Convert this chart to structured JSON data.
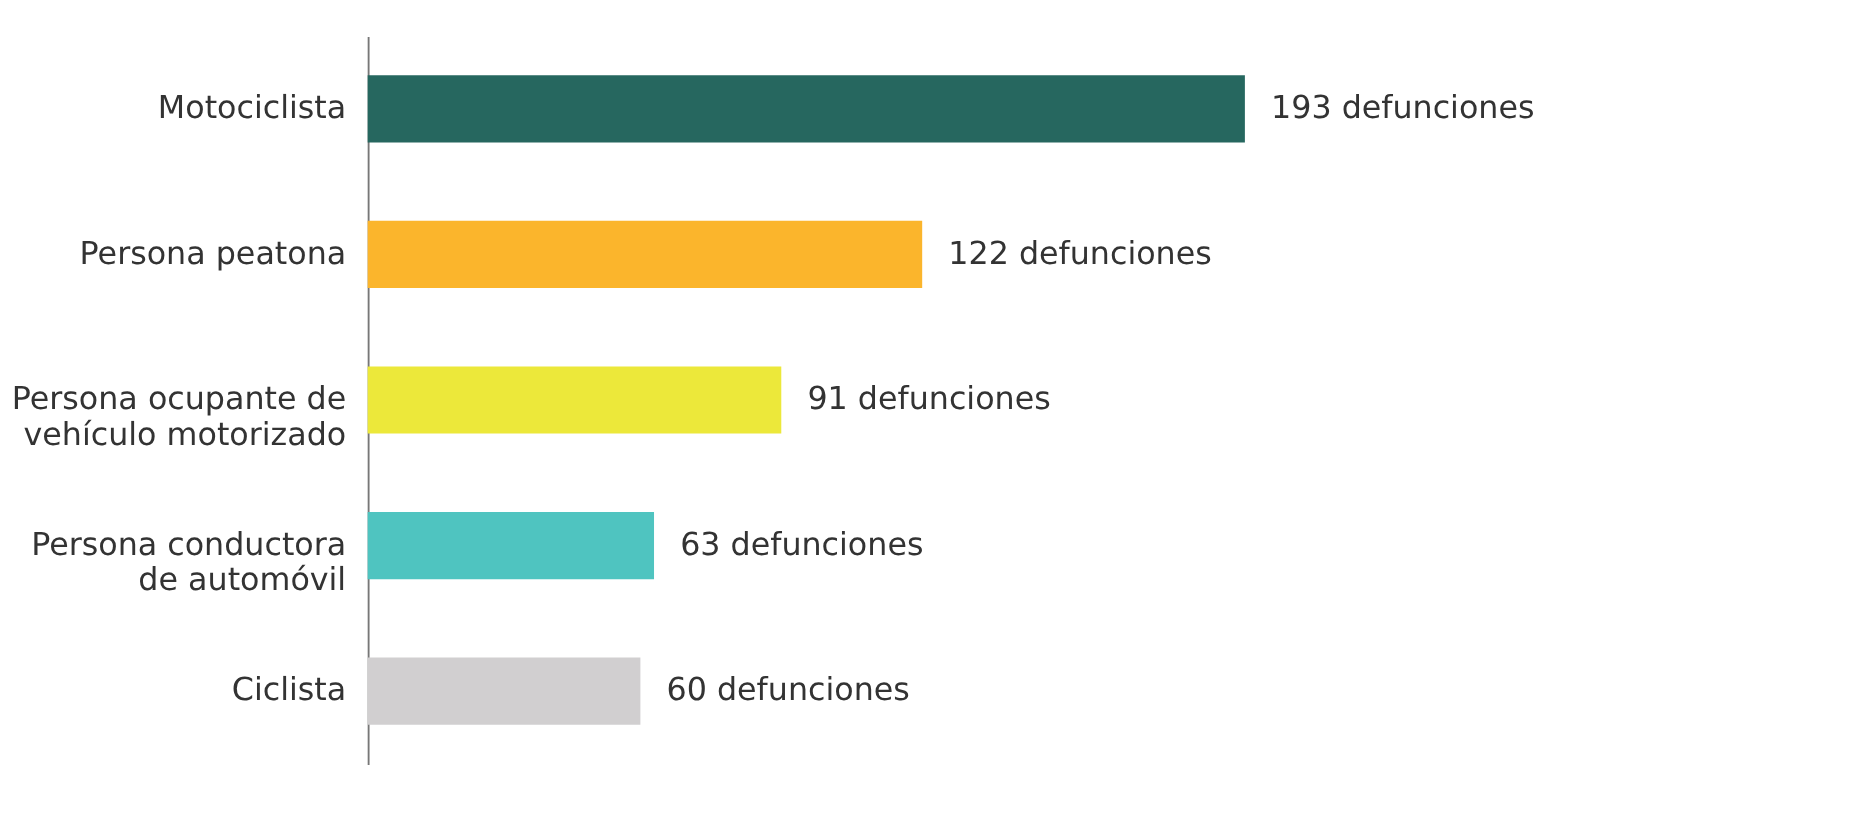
{
  "chart_data": {
    "type": "bar",
    "orientation": "horizontal",
    "categories": [
      "Motociclista",
      "Persona peatona",
      "Persona ocupante de vehículo motorizado",
      "Persona conductora de automóvil",
      "Ciclista"
    ],
    "values": [
      193,
      122,
      91,
      63,
      60
    ],
    "colors": [
      "#26675f",
      "#fbb52c",
      "#ece83a",
      "#4fc4c0",
      "#d1cfd0"
    ],
    "value_labels": [
      "193 defunciones",
      "122 defunciones",
      "91 defunciones",
      "63 defunciones",
      "60 defunciones"
    ]
  }
}
